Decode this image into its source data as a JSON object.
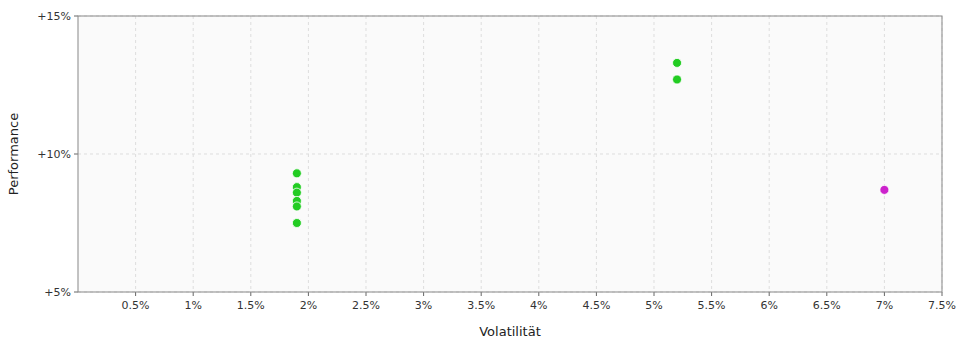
{
  "chart_data": {
    "type": "scatter",
    "xlabel": "Volatilität",
    "ylabel": "Performance",
    "xlim": [
      0.0,
      0.075
    ],
    "ylim": [
      0.05,
      0.15
    ],
    "xticks": [
      {
        "value": 0.005,
        "label": "0.5%"
      },
      {
        "value": 0.01,
        "label": "1%"
      },
      {
        "value": 0.015,
        "label": "1.5%"
      },
      {
        "value": 0.02,
        "label": "2%"
      },
      {
        "value": 0.025,
        "label": "2.5%"
      },
      {
        "value": 0.03,
        "label": "3%"
      },
      {
        "value": 0.035,
        "label": "3.5%"
      },
      {
        "value": 0.04,
        "label": "4%"
      },
      {
        "value": 0.045,
        "label": "4.5%"
      },
      {
        "value": 0.05,
        "label": "5%"
      },
      {
        "value": 0.055,
        "label": "5.5%"
      },
      {
        "value": 0.06,
        "label": "6%"
      },
      {
        "value": 0.065,
        "label": "6.5%"
      },
      {
        "value": 0.07,
        "label": "7%"
      },
      {
        "value": 0.075,
        "label": "7.5%"
      }
    ],
    "yticks": [
      {
        "value": 0.05,
        "label": "+5%"
      },
      {
        "value": 0.1,
        "label": "+10%"
      },
      {
        "value": 0.15,
        "label": "+15%"
      }
    ],
    "grid": true,
    "series": [
      {
        "color": "#22cc22",
        "x": [
          0.019,
          0.019,
          0.019,
          0.019,
          0.019,
          0.019,
          0.052,
          0.052
        ],
        "values": [
          0.093,
          0.088,
          0.086,
          0.083,
          0.081,
          0.075,
          0.133,
          0.127
        ]
      },
      {
        "color": "#cc22cc",
        "x": [
          0.07
        ],
        "values": [
          0.087
        ]
      }
    ]
  }
}
